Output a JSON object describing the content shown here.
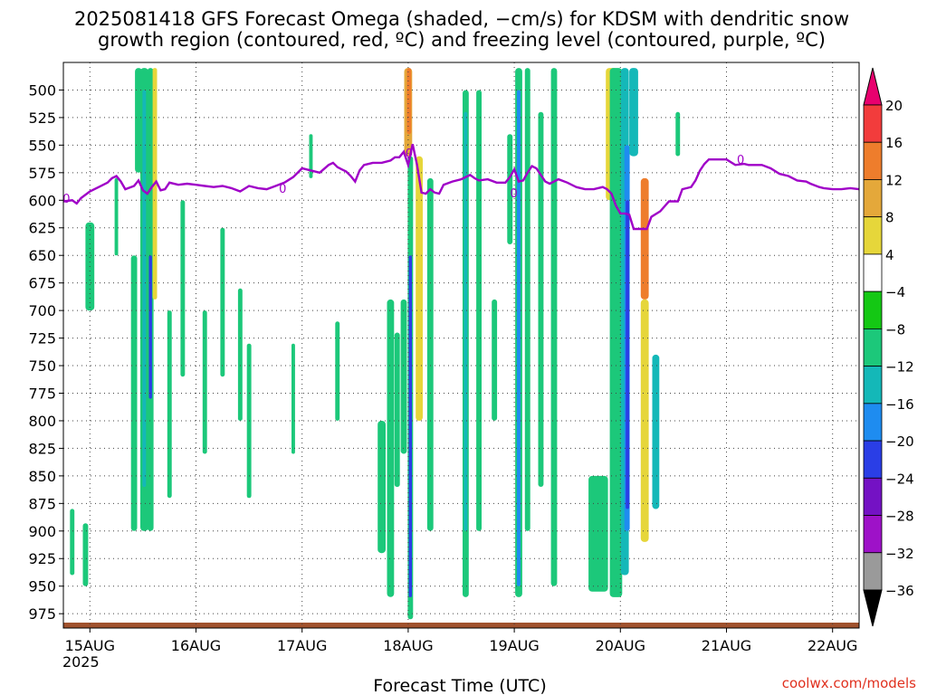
{
  "title": {
    "line1": "2025081418 GFS Forecast Omega (shaded, −cm/s) for KDSM with dendritic snow",
    "line2": "growth region (contoured, red, ºC) and freezing level (contoured, purple, ºC)"
  },
  "credit": "coolwx.com/models",
  "chart_data": {
    "type": "heatmap",
    "title": "2025081418 GFS Forecast Omega (shaded, −cm/s) for KDSM with dendritic snow growth region (contoured, red, ºC) and freezing level (contoured, purple, ºC)",
    "xlabel": "Forecast Time (UTC)",
    "ylabel": "",
    "x_ticks": [
      {
        "label": "15AUG",
        "sublabel": "2025",
        "hour": 6
      },
      {
        "label": "16AUG",
        "sublabel": "",
        "hour": 30
      },
      {
        "label": "17AUG",
        "sublabel": "",
        "hour": 54
      },
      {
        "label": "18AUG",
        "sublabel": "",
        "hour": 78
      },
      {
        "label": "19AUG",
        "sublabel": "",
        "hour": 102
      },
      {
        "label": "20AUG",
        "sublabel": "",
        "hour": 126
      },
      {
        "label": "21AUG",
        "sublabel": "",
        "hour": 150
      },
      {
        "label": "22AUG",
        "sublabel": "",
        "hour": 174
      }
    ],
    "y_ticks": [
      "500",
      "525",
      "550",
      "575",
      "600",
      "625",
      "650",
      "675",
      "700",
      "725",
      "750",
      "775",
      "800",
      "825",
      "850",
      "875",
      "900",
      "925",
      "950",
      "975"
    ],
    "xlim_hours": [
      0,
      180
    ],
    "ylim_hpa": [
      475,
      988
    ],
    "y_reversed": true,
    "grid": true,
    "colorbar": {
      "ticks": [
        "20",
        "16",
        "12",
        "8",
        "4",
        "−4",
        "−8",
        "−12",
        "−16",
        "−20",
        "−24",
        "−28",
        "−32",
        "−36"
      ],
      "colors": [
        "#e8006e",
        "#f23c3c",
        "#ee7d2c",
        "#e4a83a",
        "#e6d63a",
        "#ffffff",
        "#14c814",
        "#1cc87a",
        "#14b8b8",
        "#1e8cf0",
        "#2a3ee6",
        "#7412c4",
        "#9e12c8",
        "#9a9a9a",
        "#000000"
      ]
    },
    "freezing_level": {
      "label": "0",
      "color": "#a000c8",
      "points": [
        [
          0,
          601
        ],
        [
          2,
          600
        ],
        [
          3,
          603
        ],
        [
          4,
          598
        ],
        [
          6,
          592
        ],
        [
          8,
          588
        ],
        [
          10,
          584
        ],
        [
          11,
          580
        ],
        [
          12,
          578
        ],
        [
          13,
          583
        ],
        [
          14,
          590
        ],
        [
          16,
          587
        ],
        [
          17,
          582
        ],
        [
          18,
          591
        ],
        [
          19,
          594
        ],
        [
          20,
          588
        ],
        [
          21,
          583
        ],
        [
          22,
          591
        ],
        [
          23,
          590
        ],
        [
          24,
          584
        ],
        [
          26,
          586
        ],
        [
          28,
          585
        ],
        [
          30,
          586
        ],
        [
          32,
          587
        ],
        [
          34,
          588
        ],
        [
          36,
          587
        ],
        [
          38,
          589
        ],
        [
          40,
          592
        ],
        [
          42,
          587
        ],
        [
          44,
          589
        ],
        [
          46,
          590
        ],
        [
          48,
          587
        ],
        [
          50,
          584
        ],
        [
          52,
          579
        ],
        [
          54,
          571
        ],
        [
          56,
          573
        ],
        [
          58,
          575
        ],
        [
          60,
          568
        ],
        [
          61,
          566
        ],
        [
          62,
          570
        ],
        [
          63,
          572
        ],
        [
          64,
          574
        ],
        [
          65,
          578
        ],
        [
          66,
          583
        ],
        [
          67,
          573
        ],
        [
          68,
          568
        ],
        [
          70,
          566
        ],
        [
          72,
          566
        ],
        [
          74,
          564
        ],
        [
          75,
          561
        ],
        [
          76,
          561
        ],
        [
          77,
          556
        ],
        [
          78,
          568
        ],
        [
          79,
          549
        ],
        [
          80,
          568
        ],
        [
          81,
          593
        ],
        [
          82,
          594
        ],
        [
          83,
          590
        ],
        [
          84,
          593
        ],
        [
          85,
          594
        ],
        [
          86,
          586
        ],
        [
          88,
          583
        ],
        [
          90,
          581
        ],
        [
          92,
          577
        ],
        [
          93,
          580
        ],
        [
          94,
          582
        ],
        [
          96,
          581
        ],
        [
          98,
          584
        ],
        [
          100,
          584
        ],
        [
          101,
          579
        ],
        [
          102,
          572
        ],
        [
          103,
          583
        ],
        [
          104,
          582
        ],
        [
          105,
          575
        ],
        [
          106,
          569
        ],
        [
          107,
          571
        ],
        [
          108,
          577
        ],
        [
          109,
          583
        ],
        [
          110,
          585
        ],
        [
          112,
          581
        ],
        [
          114,
          584
        ],
        [
          116,
          588
        ],
        [
          118,
          590
        ],
        [
          120,
          590
        ],
        [
          122,
          588
        ],
        [
          123,
          590
        ],
        [
          124,
          594
        ],
        [
          125,
          605
        ],
        [
          126,
          612
        ],
        [
          127,
          612
        ],
        [
          128,
          613
        ],
        [
          129,
          626
        ],
        [
          130,
          626
        ],
        [
          132,
          626
        ],
        [
          133,
          615
        ],
        [
          135,
          610
        ],
        [
          137,
          601
        ],
        [
          139,
          601
        ],
        [
          140,
          590
        ],
        [
          142,
          588
        ],
        [
          143,
          582
        ],
        [
          144,
          573
        ],
        [
          145,
          567
        ],
        [
          146,
          563
        ],
        [
          148,
          563
        ],
        [
          150,
          563
        ],
        [
          152,
          568
        ],
        [
          154,
          567
        ],
        [
          155,
          568
        ],
        [
          156,
          568
        ],
        [
          158,
          568
        ],
        [
          160,
          571
        ],
        [
          162,
          576
        ],
        [
          164,
          578
        ],
        [
          166,
          582
        ],
        [
          168,
          583
        ],
        [
          169,
          585
        ],
        [
          171,
          588
        ],
        [
          172,
          589
        ],
        [
          174,
          590
        ],
        [
          176,
          590
        ],
        [
          178,
          589
        ],
        [
          180,
          590
        ]
      ]
    },
    "omega_bands": [
      {
        "x": 6,
        "half_width": 1.0,
        "from": 620,
        "to": 700,
        "class": "-8"
      },
      {
        "x": 5,
        "half_width": 0.6,
        "from": 893,
        "to": 950,
        "class": "-8"
      },
      {
        "x": 2,
        "half_width": 0.5,
        "from": 880,
        "to": 940,
        "class": "-8"
      },
      {
        "x": 12,
        "half_width": 0.4,
        "from": 580,
        "to": 650,
        "class": "-8"
      },
      {
        "x": 17,
        "half_width": 0.8,
        "from": 480,
        "to": 575,
        "class": "-8"
      },
      {
        "x": 18.3,
        "half_width": 0.9,
        "from": 480,
        "to": 900,
        "class": "-8"
      },
      {
        "x": 18.3,
        "half_width": 0.4,
        "from": 500,
        "to": 860,
        "class": "-12"
      },
      {
        "x": 19.7,
        "half_width": 0.7,
        "from": 480,
        "to": 900,
        "class": "-8"
      },
      {
        "x": 19.7,
        "half_width": 0.35,
        "from": 650,
        "to": 780,
        "class": "-20"
      },
      {
        "x": 20.7,
        "half_width": 0.5,
        "from": 480,
        "to": 690,
        "class": "8"
      },
      {
        "x": 16,
        "half_width": 0.7,
        "from": 650,
        "to": 900,
        "class": "-8"
      },
      {
        "x": 24,
        "half_width": 0.5,
        "from": 700,
        "to": 870,
        "class": "-8"
      },
      {
        "x": 27,
        "half_width": 0.5,
        "from": 600,
        "to": 760,
        "class": "-8"
      },
      {
        "x": 32,
        "half_width": 0.5,
        "from": 700,
        "to": 830,
        "class": "-8"
      },
      {
        "x": 36,
        "half_width": 0.5,
        "from": 625,
        "to": 760,
        "class": "-8"
      },
      {
        "x": 40,
        "half_width": 0.5,
        "from": 680,
        "to": 800,
        "class": "-8"
      },
      {
        "x": 42,
        "half_width": 0.5,
        "from": 730,
        "to": 870,
        "class": "-8"
      },
      {
        "x": 52,
        "half_width": 0.4,
        "from": 730,
        "to": 830,
        "class": "-8"
      },
      {
        "x": 56,
        "half_width": 0.4,
        "from": 540,
        "to": 580,
        "class": "-8"
      },
      {
        "x": 62,
        "half_width": 0.5,
        "from": 710,
        "to": 800,
        "class": "-8"
      },
      {
        "x": 72,
        "half_width": 0.9,
        "from": 800,
        "to": 920,
        "class": "-8"
      },
      {
        "x": 74,
        "half_width": 0.8,
        "from": 690,
        "to": 960,
        "class": "-8"
      },
      {
        "x": 75.5,
        "half_width": 0.6,
        "from": 720,
        "to": 860,
        "class": "-8"
      },
      {
        "x": 77,
        "half_width": 0.7,
        "from": 690,
        "to": 830,
        "class": "-8"
      },
      {
        "x": 78,
        "half_width": 0.9,
        "from": 480,
        "to": 560,
        "class": "12"
      },
      {
        "x": 78.2,
        "half_width": 0.5,
        "from": 480,
        "to": 540,
        "class": "16"
      },
      {
        "x": 78.5,
        "half_width": 0.6,
        "from": 560,
        "to": 980,
        "class": "-8"
      },
      {
        "x": 78.5,
        "half_width": 0.35,
        "from": 650,
        "to": 960,
        "class": "-20"
      },
      {
        "x": 80.5,
        "half_width": 0.8,
        "from": 560,
        "to": 800,
        "class": "8"
      },
      {
        "x": 83,
        "half_width": 0.7,
        "from": 580,
        "to": 900,
        "class": "-8"
      },
      {
        "x": 91,
        "half_width": 0.7,
        "from": 500,
        "to": 960,
        "class": "-8"
      },
      {
        "x": 91,
        "half_width": 0.4,
        "from": 520,
        "to": 900,
        "class": "-12"
      },
      {
        "x": 94,
        "half_width": 0.6,
        "from": 500,
        "to": 900,
        "class": "-8"
      },
      {
        "x": 97.5,
        "half_width": 0.6,
        "from": 690,
        "to": 800,
        "class": "-8"
      },
      {
        "x": 101,
        "half_width": 0.6,
        "from": 540,
        "to": 640,
        "class": "-8"
      },
      {
        "x": 103,
        "half_width": 0.8,
        "from": 480,
        "to": 960,
        "class": "-8"
      },
      {
        "x": 103,
        "half_width": 0.4,
        "from": 500,
        "to": 950,
        "class": "-16"
      },
      {
        "x": 105,
        "half_width": 0.6,
        "from": 480,
        "to": 900,
        "class": "-8"
      },
      {
        "x": 108,
        "half_width": 0.6,
        "from": 520,
        "to": 860,
        "class": "-8"
      },
      {
        "x": 111,
        "half_width": 0.7,
        "from": 480,
        "to": 950,
        "class": "-8"
      },
      {
        "x": 121,
        "half_width": 2.2,
        "from": 850,
        "to": 955,
        "class": "-8"
      },
      {
        "x": 124,
        "half_width": 1.3,
        "from": 480,
        "to": 600,
        "class": "8"
      },
      {
        "x": 125,
        "half_width": 1.4,
        "from": 480,
        "to": 960,
        "class": "-8"
      },
      {
        "x": 127,
        "half_width": 0.9,
        "from": 480,
        "to": 940,
        "class": "-12"
      },
      {
        "x": 127.5,
        "half_width": 0.6,
        "from": 550,
        "to": 900,
        "class": "-16"
      },
      {
        "x": 127.6,
        "half_width": 0.4,
        "from": 600,
        "to": 880,
        "class": "-20"
      },
      {
        "x": 129,
        "half_width": 1.0,
        "from": 480,
        "to": 560,
        "class": "-12"
      },
      {
        "x": 131.5,
        "half_width": 0.9,
        "from": 580,
        "to": 690,
        "class": "16"
      },
      {
        "x": 131.5,
        "half_width": 0.9,
        "from": 690,
        "to": 910,
        "class": "8"
      },
      {
        "x": 134,
        "half_width": 0.8,
        "from": 740,
        "to": 880,
        "class": "-12"
      },
      {
        "x": 135,
        "half_width": 1.0,
        "from": 500,
        "to": 560,
        "class": "4"
      },
      {
        "x": 137,
        "half_width": 1.0,
        "from": 520,
        "to": 600,
        "class": "4"
      },
      {
        "x": 139,
        "half_width": 0.5,
        "from": 520,
        "to": 560,
        "class": "-8"
      },
      {
        "x": 140,
        "half_width": 0.6,
        "from": 680,
        "to": 760,
        "class": "4"
      },
      {
        "x": 179,
        "half_width": 0.8,
        "from": 555,
        "to": 610,
        "class": "4"
      }
    ]
  }
}
